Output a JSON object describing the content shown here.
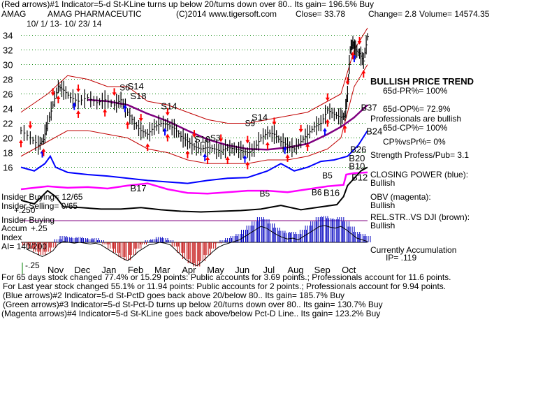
{
  "header": {
    "line1": "(Red arrows)#1 Indicator=5-d St-KLine turns up below 20/turns down over 80.. Its gain= 196.5% Buy",
    "ticker": "AMAG",
    "company": "AMAG PHARMACEUTIC",
    "copyright": "(C)2014 www.tigersoft.com",
    "close": "Close=  33.78",
    "change": "Change= 2.8",
    "volume": "Volume= 14574.35",
    "date_range": "10/ 1/ 13- 10/ 23/ 14"
  },
  "left_panel": {
    "insider_buying_ratio": "Insider Buying= 12/65",
    "insider_selling_ratio": "Insider Selling= 0/65",
    "level_250": "+.250",
    "insider_buying": "Insider Buying",
    "accum_label": "Accum",
    "accum_top": "+.25",
    "index_label": "Index",
    "ai_value": "AI= 140/200",
    "accum_bottom": "-.25"
  },
  "right_panel": {
    "trend": "BULLISH PRICE TREND",
    "pr": "65d-PR%= 100%",
    "op": "65d-OP%= 72.9%",
    "pros": "Professionals are bullish",
    "cp": "65d-CP%= 100%",
    "cpvspr": "CP%vsPr%=  0%",
    "strength": "Strength Profess/Pub= 3.1",
    "closing_power": "CLOSING POWER (blue):",
    "closing_power_state": "Bullish",
    "obv": "OBV (magenta):",
    "obv_state": "Bullish",
    "relstr": "REL.STR..VS DJI (brown):",
    "relstr_state": "Bullish",
    "accumulation": "Currently Accumulation",
    "ip": "IP=  .119"
  },
  "footer": {
    "line1": "For 65 days stock changed  77.4% or  15.29 points:  Public accounts for  3.69 points.;  Professionals account for  11.6 points.",
    "line2": "For Last year stock changed  55.1% or  11.94 points:  Public accounts for  2 points.;  Professionals account for  9.94 points.",
    "line3": "(Blue arrows)#2 Indicator=5-d St-PctD goes back above 20/below 80.. Its gain= 185.7% Buy",
    "line4": "(Green arrows)#3 Indicator=5-d St-Pct-D turns up below 20/turns down over 80.. Its gain= 130.7% Buy",
    "line5": "(Magenta arrows)#4 Indicator=5-d St-KLine goes back above/below Pct-D Line.. Its gain= 123.2% Buy"
  },
  "colors": {
    "price": "#000000",
    "bands": "#c00000",
    "ma": "#800080",
    "closing_power": "#0000ff",
    "obv": "#ff00ff",
    "relstr": "#000000",
    "accum_pos": "#0000c0",
    "accum_neg": "#c00000",
    "grid": "#008000",
    "arrow_red": "#ff0000",
    "arrow_blue": "#0000ff"
  },
  "chart_data": {
    "type": "line",
    "x_ticks": [
      "Nov",
      "Dec",
      "Jan",
      "Feb",
      "Mar",
      "Apr",
      "May",
      "Jun",
      "Jul",
      "Aug",
      "Sep",
      "Oct"
    ],
    "y_ticks": [
      34,
      32,
      30,
      28,
      26,
      24,
      22,
      20,
      18,
      16
    ],
    "ylim": [
      15,
      35
    ],
    "signals": [
      {
        "label": "S6",
        "x": 7.4,
        "y": 26.5
      },
      {
        "label": "S14",
        "x": 8.0,
        "y": 26.6
      },
      {
        "label": "S18",
        "x": 8.2,
        "y": 25.3
      },
      {
        "label": "S14",
        "x": 10.5,
        "y": 23.9
      },
      {
        "label": "S10",
        "x": 13.0,
        "y": 19.4
      },
      {
        "label": "S3",
        "x": 14.2,
        "y": 19.6
      },
      {
        "label": "S9",
        "x": 16.8,
        "y": 21.6
      },
      {
        "label": "S14",
        "x": 17.3,
        "y": 22.4
      },
      {
        "label": "B17",
        "x": 8.2,
        "y": 12.7
      },
      {
        "label": "B5",
        "x": 17.9,
        "y": 12.0
      },
      {
        "label": "B5",
        "x": 22.6,
        "y": 14.5
      },
      {
        "label": "B6",
        "x": 21.8,
        "y": 12.2
      },
      {
        "label": "B16",
        "x": 22.7,
        "y": 12.1
      },
      {
        "label": "B37",
        "x": 25.5,
        "y": 23.7
      },
      {
        "label": "B24",
        "x": 25.9,
        "y": 20.5
      },
      {
        "label": "B26",
        "x": 24.7,
        "y": 18.0
      },
      {
        "label": "B20",
        "x": 24.6,
        "y": 16.8
      },
      {
        "label": "B10",
        "x": 24.6,
        "y": 15.7
      },
      {
        "label": "B12",
        "x": 24.8,
        "y": 14.2
      }
    ],
    "price": [
      [
        0.0,
        21.0
      ],
      [
        0.7,
        20.0
      ],
      [
        1.3,
        19.0
      ],
      [
        1.7,
        19.8
      ],
      [
        2.0,
        22.0
      ],
      [
        2.4,
        24.5
      ],
      [
        2.8,
        27.0
      ],
      [
        3.2,
        26.5
      ],
      [
        3.7,
        25.5
      ],
      [
        4.3,
        25.0
      ],
      [
        5.0,
        25.5
      ],
      [
        5.7,
        24.8
      ],
      [
        6.3,
        25.2
      ],
      [
        7.0,
        24.5
      ],
      [
        7.5,
        25.2
      ],
      [
        8.0,
        23.5
      ],
      [
        8.5,
        22.0
      ],
      [
        9.0,
        21.0
      ],
      [
        9.5,
        20.5
      ],
      [
        10.0,
        21.5
      ],
      [
        10.5,
        22.0
      ],
      [
        11.0,
        21.8
      ],
      [
        11.5,
        21.3
      ],
      [
        12.0,
        20.2
      ],
      [
        12.5,
        19.5
      ],
      [
        13.0,
        18.8
      ],
      [
        13.5,
        18.5
      ],
      [
        14.0,
        18.7
      ],
      [
        14.5,
        18.5
      ],
      [
        15.0,
        18.2
      ],
      [
        15.5,
        18.7
      ],
      [
        16.0,
        18.5
      ],
      [
        16.5,
        18.3
      ],
      [
        17.0,
        18.0
      ],
      [
        17.5,
        18.5
      ],
      [
        18.0,
        20.0
      ],
      [
        18.5,
        20.7
      ],
      [
        19.0,
        20.5
      ],
      [
        19.5,
        19.5
      ],
      [
        20.0,
        19.0
      ],
      [
        20.5,
        18.5
      ],
      [
        21.0,
        19.5
      ],
      [
        21.5,
        20.5
      ],
      [
        22.0,
        21.5
      ],
      [
        22.5,
        22.0
      ],
      [
        23.0,
        23.8
      ],
      [
        23.5,
        23.2
      ],
      [
        24.0,
        22.8
      ],
      [
        24.3,
        23.0
      ],
      [
        24.5,
        26.0
      ],
      [
        24.7,
        32.0
      ],
      [
        24.9,
        33.0
      ],
      [
        25.1,
        32.0
      ],
      [
        25.4,
        31.5
      ],
      [
        25.7,
        30.5
      ],
      [
        26.0,
        33.8
      ]
    ],
    "upper_band": [
      [
        0.0,
        23.5
      ],
      [
        2.0,
        26.0
      ],
      [
        3.5,
        28.5
      ],
      [
        5.0,
        28.0
      ],
      [
        6.5,
        27.0
      ],
      [
        8.0,
        27.0
      ],
      [
        9.5,
        25.0
      ],
      [
        11.0,
        24.5
      ],
      [
        12.5,
        23.5
      ],
      [
        14.0,
        22.5
      ],
      [
        15.5,
        22.0
      ],
      [
        17.0,
        22.0
      ],
      [
        18.5,
        22.5
      ],
      [
        20.0,
        23.0
      ],
      [
        21.5,
        23.5
      ],
      [
        23.0,
        25.0
      ],
      [
        24.0,
        26.0
      ],
      [
        25.0,
        32.0
      ],
      [
        26.0,
        35.0
      ]
    ],
    "lower_band": [
      [
        0.0,
        17.5
      ],
      [
        2.0,
        19.5
      ],
      [
        3.5,
        21.0
      ],
      [
        5.0,
        21.0
      ],
      [
        6.5,
        20.5
      ],
      [
        8.0,
        20.0
      ],
      [
        9.5,
        18.5
      ],
      [
        11.0,
        18.0
      ],
      [
        12.5,
        17.0
      ],
      [
        14.0,
        16.5
      ],
      [
        15.5,
        16.5
      ],
      [
        17.0,
        16.5
      ],
      [
        18.5,
        17.0
      ],
      [
        20.0,
        17.0
      ],
      [
        21.5,
        17.5
      ],
      [
        23.0,
        18.5
      ],
      [
        24.0,
        20.0
      ],
      [
        25.0,
        27.0
      ],
      [
        26.0,
        30.0
      ]
    ],
    "moving_average": [
      [
        5.0,
        25.2
      ],
      [
        6.5,
        25.0
      ],
      [
        8.0,
        24.5
      ],
      [
        9.5,
        23.3
      ],
      [
        11.0,
        22.3
      ],
      [
        12.5,
        21.0
      ],
      [
        14.0,
        19.8
      ],
      [
        15.5,
        19.0
      ],
      [
        17.0,
        18.5
      ],
      [
        18.5,
        18.4
      ],
      [
        20.0,
        18.7
      ],
      [
        21.5,
        19.2
      ],
      [
        23.0,
        20.5
      ],
      [
        24.0,
        21.5
      ],
      [
        25.0,
        22.8
      ],
      [
        26.0,
        24.5
      ]
    ],
    "closing_power": [
      [
        0.0,
        16.0
      ],
      [
        1.0,
        15.5
      ],
      [
        1.8,
        16.5
      ],
      [
        2.2,
        17.5
      ],
      [
        2.6,
        16.0
      ],
      [
        3.5,
        15.3
      ],
      [
        5.0,
        15.0
      ],
      [
        6.5,
        14.8
      ],
      [
        8.0,
        14.5
      ],
      [
        9.5,
        14.2
      ],
      [
        11.0,
        14.0
      ],
      [
        12.5,
        13.8
      ],
      [
        14.0,
        14.2
      ],
      [
        15.5,
        14.5
      ],
      [
        17.0,
        14.6
      ],
      [
        18.5,
        15.5
      ],
      [
        19.5,
        16.5
      ],
      [
        20.5,
        15.5
      ],
      [
        21.5,
        16.0
      ],
      [
        22.5,
        16.8
      ],
      [
        23.5,
        17.0
      ],
      [
        24.5,
        17.5
      ],
      [
        25.3,
        19.0
      ],
      [
        26.0,
        21.0
      ]
    ],
    "obv": [
      [
        0.0,
        13.0
      ],
      [
        2.0,
        13.4
      ],
      [
        3.5,
        13.2
      ],
      [
        5.0,
        13.3
      ],
      [
        6.5,
        13.1
      ],
      [
        8.0,
        13.5
      ],
      [
        9.5,
        13.8
      ],
      [
        11.0,
        13.0
      ],
      [
        12.5,
        12.5
      ],
      [
        14.0,
        12.4
      ],
      [
        15.5,
        12.6
      ],
      [
        17.0,
        12.8
      ],
      [
        18.5,
        12.8
      ],
      [
        20.0,
        12.6
      ],
      [
        21.5,
        13.0
      ],
      [
        23.0,
        13.4
      ],
      [
        24.2,
        13.6
      ],
      [
        24.4,
        15.0
      ],
      [
        25.0,
        15.2
      ],
      [
        26.0,
        15.3
      ]
    ],
    "relstr": [
      [
        0.0,
        11.5
      ],
      [
        1.0,
        11.0
      ],
      [
        2.0,
        12.8
      ],
      [
        2.6,
        12.0
      ],
      [
        3.2,
        10.6
      ],
      [
        4.5,
        10.5
      ],
      [
        6.0,
        10.3
      ],
      [
        7.5,
        10.3
      ],
      [
        9.0,
        10.5
      ],
      [
        10.5,
        10.2
      ],
      [
        12.0,
        10.0
      ],
      [
        13.5,
        9.9
      ],
      [
        15.0,
        10.0
      ],
      [
        16.5,
        10.1
      ],
      [
        18.0,
        10.3
      ],
      [
        19.5,
        10.8
      ],
      [
        21.0,
        10.2
      ],
      [
        22.5,
        10.6
      ],
      [
        23.7,
        10.9
      ],
      [
        24.2,
        12.0
      ],
      [
        24.5,
        13.5
      ],
      [
        25.5,
        15.5
      ],
      [
        26.0,
        16.0
      ]
    ],
    "accumulation": [
      [
        0.4,
        -0.03
      ],
      [
        0.8,
        -0.06
      ],
      [
        1.2,
        -0.09
      ],
      [
        1.6,
        -0.12
      ],
      [
        2.0,
        -0.09
      ],
      [
        2.4,
        -0.05
      ],
      [
        2.8,
        0.03
      ],
      [
        3.2,
        0.06
      ],
      [
        3.6,
        0.05
      ],
      [
        4.0,
        0.04
      ],
      [
        4.4,
        0.05
      ],
      [
        4.8,
        0.04
      ],
      [
        5.2,
        0.03
      ],
      [
        5.6,
        0.04
      ],
      [
        6.0,
        0.02
      ],
      [
        6.4,
        -0.02
      ],
      [
        6.8,
        -0.06
      ],
      [
        7.2,
        -0.1
      ],
      [
        7.6,
        -0.14
      ],
      [
        8.0,
        -0.17
      ],
      [
        8.4,
        -0.12
      ],
      [
        8.8,
        -0.06
      ],
      [
        9.2,
        -0.02
      ],
      [
        9.6,
        0.02
      ],
      [
        10.0,
        0.03
      ],
      [
        10.4,
        0.05
      ],
      [
        10.8,
        0.04
      ],
      [
        11.2,
        0.02
      ],
      [
        11.6,
        -0.04
      ],
      [
        12.0,
        -0.1
      ],
      [
        12.4,
        -0.16
      ],
      [
        12.8,
        -0.2
      ],
      [
        13.2,
        -0.23
      ],
      [
        13.6,
        -0.18
      ],
      [
        14.0,
        -0.12
      ],
      [
        14.4,
        -0.06
      ],
      [
        14.8,
        -0.01
      ],
      [
        15.2,
        0.02
      ],
      [
        15.6,
        0.04
      ],
      [
        16.0,
        0.06
      ],
      [
        16.4,
        0.08
      ],
      [
        16.8,
        0.12
      ],
      [
        17.2,
        0.16
      ],
      [
        17.6,
        0.2
      ],
      [
        18.0,
        0.24
      ],
      [
        18.4,
        0.22
      ],
      [
        18.8,
        0.18
      ],
      [
        19.2,
        0.14
      ],
      [
        19.6,
        0.11
      ],
      [
        20.0,
        0.09
      ],
      [
        20.4,
        0.1
      ],
      [
        20.8,
        0.08
      ],
      [
        21.2,
        0.12
      ],
      [
        21.6,
        0.16
      ],
      [
        22.0,
        0.2
      ],
      [
        22.4,
        0.24
      ],
      [
        22.8,
        0.25
      ],
      [
        23.2,
        0.23
      ],
      [
        23.6,
        0.22
      ],
      [
        24.0,
        0.24
      ],
      [
        24.4,
        0.2
      ],
      [
        24.8,
        0.15
      ],
      [
        25.2,
        0.1
      ],
      [
        25.6,
        0.08
      ],
      [
        26.0,
        0.06
      ]
    ],
    "accum_ylim": [
      -0.3,
      0.3
    ]
  }
}
